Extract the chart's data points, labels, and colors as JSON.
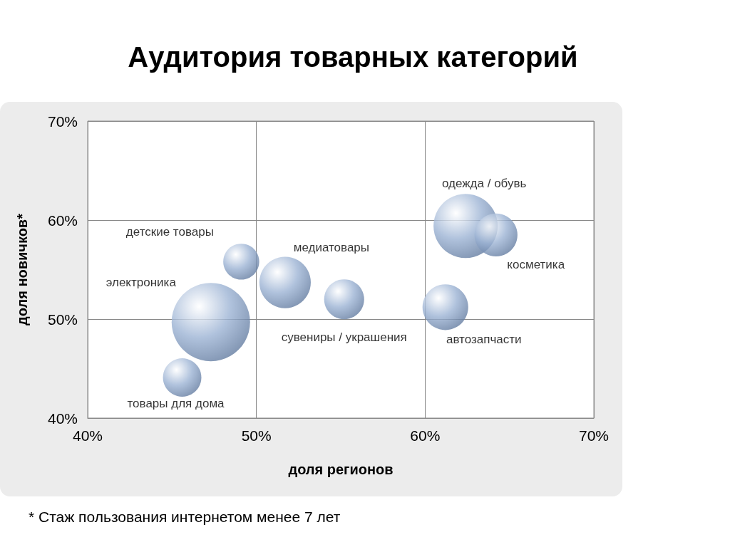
{
  "chart_data": {
    "type": "bubble",
    "title": "Аудитория товарных категорий",
    "xlabel": "доля регионов",
    "ylabel": "доля новичков*",
    "annotations": [
      "* Стаж пользования интернетом менее 7 лет"
    ],
    "series": [
      {
        "name": "товары для дома",
        "color": "#9cb3d4",
        "x": [
          45.6
        ],
        "values": [
          44.1
        ],
        "sizes": [
          0.24
        ]
      },
      {
        "name": "электроника",
        "color": "#9cb3d4",
        "x": [
          47.3
        ],
        "values": [
          49.7
        ],
        "sizes": [
          1
        ]
      },
      {
        "name": "детские товары",
        "color": "#9cb3d4",
        "x": [
          49.1
        ],
        "values": [
          55.8
        ],
        "sizes": [
          0.21
        ]
      },
      {
        "name": "медиатовары",
        "color": "#9cb3d4",
        "x": [
          51.7
        ],
        "values": [
          53.7
        ],
        "sizes": [
          0.43
        ]
      },
      {
        "name": "сувениры / украшения",
        "color": "#9cb3d4",
        "x": [
          55.2
        ],
        "values": [
          52.0
        ],
        "sizes": [
          0.26
        ]
      },
      {
        "name": "автозапчасти",
        "color": "#9cb3d4",
        "x": [
          61.2
        ],
        "values": [
          51.2
        ],
        "sizes": [
          0.34
        ]
      },
      {
        "name": "одежда / обувь",
        "color": "#9cb3d4",
        "x": [
          62.4
        ],
        "values": [
          59.4
        ],
        "sizes": [
          0.67
        ]
      },
      {
        "name": "косметика",
        "color": "#9cb3d4",
        "x": [
          64.2
        ],
        "values": [
          58.5
        ],
        "sizes": [
          0.3
        ]
      }
    ],
    "xlim": [
      40,
      70
    ],
    "xticks": [
      {
        "value": 40,
        "label": "40%"
      },
      {
        "value": 50,
        "label": "50%"
      },
      {
        "value": 60,
        "label": "60%"
      },
      {
        "value": 70,
        "label": "70%"
      }
    ],
    "ylim": [
      40,
      70
    ],
    "yticks": [
      {
        "value": 40,
        "label": "40%"
      },
      {
        "value": 50,
        "label": "50%"
      },
      {
        "value": 60,
        "label": "60%"
      },
      {
        "value": 70,
        "label": "70%"
      }
    ],
    "grid": true,
    "legend": false
  }
}
